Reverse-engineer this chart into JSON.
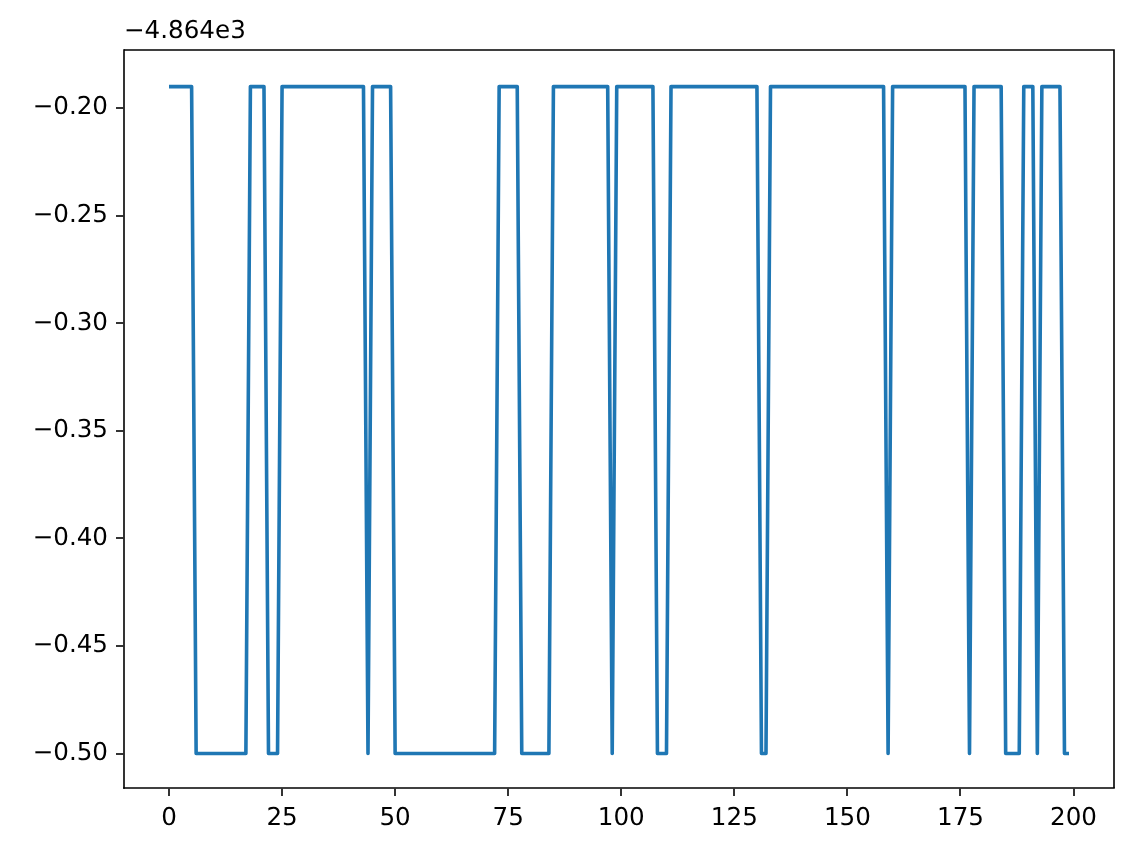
{
  "chart_data": {
    "type": "line",
    "x": [
      0,
      1,
      2,
      3,
      4,
      5,
      6,
      7,
      8,
      9,
      10,
      11,
      12,
      13,
      14,
      15,
      16,
      17,
      18,
      19,
      20,
      21,
      22,
      23,
      24,
      25,
      26,
      27,
      28,
      29,
      30,
      31,
      32,
      33,
      34,
      35,
      36,
      37,
      38,
      39,
      40,
      41,
      42,
      43,
      44,
      45,
      46,
      47,
      48,
      49,
      50,
      51,
      52,
      53,
      54,
      55,
      56,
      57,
      58,
      59,
      60,
      61,
      62,
      63,
      64,
      65,
      66,
      67,
      68,
      69,
      70,
      71,
      72,
      73,
      74,
      75,
      76,
      77,
      78,
      79,
      80,
      81,
      82,
      83,
      84,
      85,
      86,
      87,
      88,
      89,
      90,
      91,
      92,
      93,
      94,
      95,
      96,
      97,
      98,
      99,
      100,
      101,
      102,
      103,
      104,
      105,
      106,
      107,
      108,
      109,
      110,
      111,
      112,
      113,
      114,
      115,
      116,
      117,
      118,
      119,
      120,
      121,
      122,
      123,
      124,
      125,
      126,
      127,
      128,
      129,
      130,
      131,
      132,
      133,
      134,
      135,
      136,
      137,
      138,
      139,
      140,
      141,
      142,
      143,
      144,
      145,
      146,
      147,
      148,
      149,
      150,
      151,
      152,
      153,
      154,
      155,
      156,
      157,
      158,
      159,
      160,
      161,
      162,
      163,
      164,
      165,
      166,
      167,
      168,
      169,
      170,
      171,
      172,
      173,
      174,
      175,
      176,
      177,
      178,
      179,
      180,
      181,
      182,
      183,
      184,
      185,
      186,
      187,
      188,
      189,
      190,
      191,
      192,
      193,
      194,
      195,
      196,
      197,
      198,
      199
    ],
    "series": [
      {
        "color": "#1f77b4",
        "values": [
          -0.19,
          -0.19,
          -0.19,
          -0.19,
          -0.19,
          -0.19,
          -0.5,
          -0.5,
          -0.5,
          -0.5,
          -0.5,
          -0.5,
          -0.5,
          -0.5,
          -0.5,
          -0.5,
          -0.5,
          -0.5,
          -0.19,
          -0.19,
          -0.19,
          -0.19,
          -0.5,
          -0.5,
          -0.5,
          -0.19,
          -0.19,
          -0.19,
          -0.19,
          -0.19,
          -0.19,
          -0.19,
          -0.19,
          -0.19,
          -0.19,
          -0.19,
          -0.19,
          -0.19,
          -0.19,
          -0.19,
          -0.19,
          -0.19,
          -0.19,
          -0.19,
          -0.5,
          -0.19,
          -0.19,
          -0.19,
          -0.19,
          -0.19,
          -0.5,
          -0.5,
          -0.5,
          -0.5,
          -0.5,
          -0.5,
          -0.5,
          -0.5,
          -0.5,
          -0.5,
          -0.5,
          -0.5,
          -0.5,
          -0.5,
          -0.5,
          -0.5,
          -0.5,
          -0.5,
          -0.5,
          -0.5,
          -0.5,
          -0.5,
          -0.5,
          -0.19,
          -0.19,
          -0.19,
          -0.19,
          -0.19,
          -0.5,
          -0.5,
          -0.5,
          -0.5,
          -0.5,
          -0.5,
          -0.5,
          -0.19,
          -0.19,
          -0.19,
          -0.19,
          -0.19,
          -0.19,
          -0.19,
          -0.19,
          -0.19,
          -0.19,
          -0.19,
          -0.19,
          -0.19,
          -0.5,
          -0.19,
          -0.19,
          -0.19,
          -0.19,
          -0.19,
          -0.19,
          -0.19,
          -0.19,
          -0.19,
          -0.5,
          -0.5,
          -0.5,
          -0.19,
          -0.19,
          -0.19,
          -0.19,
          -0.19,
          -0.19,
          -0.19,
          -0.19,
          -0.19,
          -0.19,
          -0.19,
          -0.19,
          -0.19,
          -0.19,
          -0.19,
          -0.19,
          -0.19,
          -0.19,
          -0.19,
          -0.19,
          -0.5,
          -0.5,
          -0.19,
          -0.19,
          -0.19,
          -0.19,
          -0.19,
          -0.19,
          -0.19,
          -0.19,
          -0.19,
          -0.19,
          -0.19,
          -0.19,
          -0.19,
          -0.19,
          -0.19,
          -0.19,
          -0.19,
          -0.19,
          -0.19,
          -0.19,
          -0.19,
          -0.19,
          -0.19,
          -0.19,
          -0.19,
          -0.19,
          -0.5,
          -0.19,
          -0.19,
          -0.19,
          -0.19,
          -0.19,
          -0.19,
          -0.19,
          -0.19,
          -0.19,
          -0.19,
          -0.19,
          -0.19,
          -0.19,
          -0.19,
          -0.19,
          -0.19,
          -0.19,
          -0.5,
          -0.19,
          -0.19,
          -0.19,
          -0.19,
          -0.19,
          -0.19,
          -0.19,
          -0.5,
          -0.5,
          -0.5,
          -0.5,
          -0.19,
          -0.19,
          -0.19,
          -0.5,
          -0.19,
          -0.19,
          -0.19,
          -0.19,
          -0.19,
          -0.5,
          -0.5
        ]
      }
    ],
    "xlim": [
      -9.95,
      208.95
    ],
    "xticks": [
      0,
      25,
      50,
      75,
      100,
      125,
      150,
      175,
      200
    ],
    "ylim": [
      -0.516,
      -0.173
    ],
    "yticks": [
      {
        "value": -0.5,
        "label": "−0.50"
      },
      {
        "value": -0.45,
        "label": "−0.45"
      },
      {
        "value": -0.4,
        "label": "−0.40"
      },
      {
        "value": -0.35,
        "label": "−0.35"
      },
      {
        "value": -0.3,
        "label": "−0.30"
      },
      {
        "value": -0.25,
        "label": "−0.25"
      },
      {
        "value": -0.2,
        "label": "−0.20"
      }
    ],
    "annotations": [
      "−4.864e3"
    ]
  }
}
